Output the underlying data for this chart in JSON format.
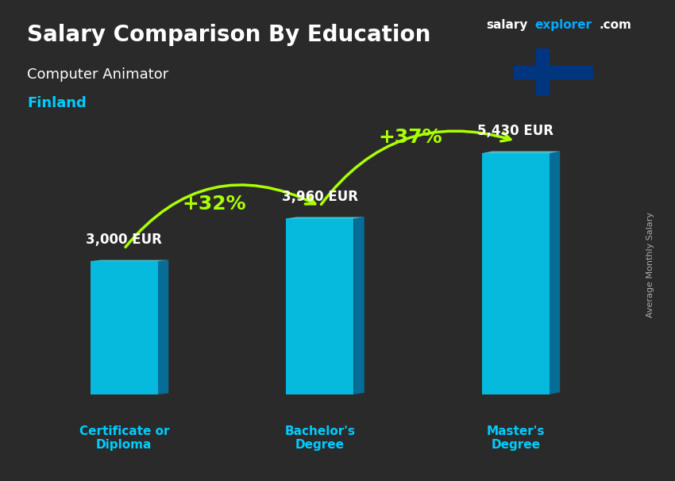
{
  "title_main": "Salary Comparison By Education",
  "subtitle_job": "Computer Animator",
  "subtitle_country": "Finland",
  "categories": [
    "Certificate or\nDiploma",
    "Bachelor's\nDegree",
    "Master's\nDegree"
  ],
  "values": [
    3000,
    3960,
    5430
  ],
  "value_labels": [
    "3,000 EUR",
    "3,960 EUR",
    "5,430 EUR"
  ],
  "pct_labels": [
    "+32%",
    "+37%"
  ],
  "bar_color_top": "#00d4ff",
  "bar_color_bottom": "#0099cc",
  "bar_color_side": "#007aaa",
  "background_color": "#2a2a2a",
  "title_color": "#ffffff",
  "subtitle_job_color": "#ffffff",
  "subtitle_country_color": "#00ccff",
  "category_label_color": "#00ccff",
  "value_label_color": "#ffffff",
  "pct_color": "#aaff00",
  "arrow_color": "#aaff00",
  "site_name_salary": "salary",
  "site_name_explorer": "explorer",
  "site_name_com": ".com",
  "site_color_salary": "#ffffff",
  "site_color_explorer": "#00aaff",
  "ylabel_text": "Average Monthly Salary",
  "ylim": [
    0,
    6500
  ],
  "bar_width": 0.45
}
